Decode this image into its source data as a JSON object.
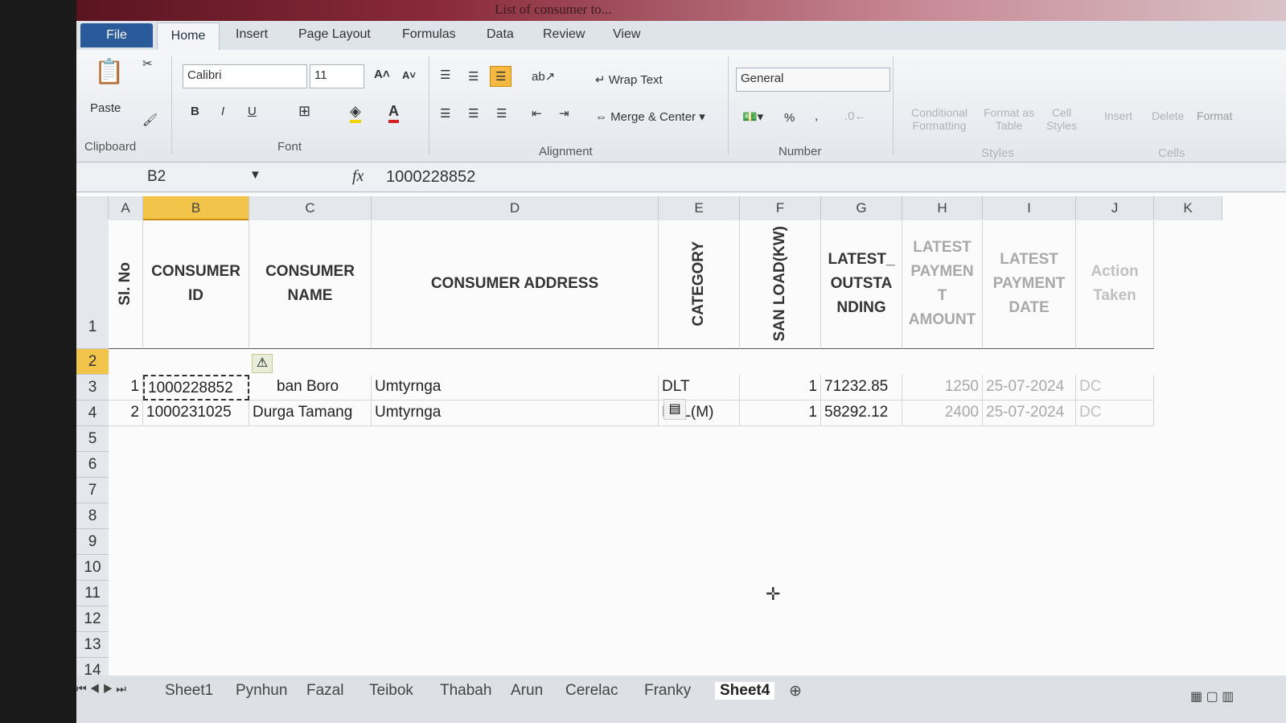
{
  "window": {
    "title": "List of consumer to..."
  },
  "ribbon": {
    "tabs": [
      "File",
      "Home",
      "Insert",
      "Page Layout",
      "Formulas",
      "Data",
      "Review",
      "View"
    ],
    "paste": "Paste",
    "font_name": "Calibri",
    "font_size": "11",
    "bold": "B",
    "italic": "I",
    "underline": "U",
    "wrap_text": "Wrap Text",
    "merge_center": "Merge & Center",
    "number_format": "General",
    "percent": "%",
    "comma": ",",
    "conditional_formatting": "Conditional Formatting",
    "format_as_table": "Format as Table",
    "cell_styles": "Cell Styles",
    "insert": "Insert",
    "delete": "Delete",
    "format": "Format",
    "groups": {
      "clipboard": "Clipboard",
      "font": "Font",
      "alignment": "Alignment",
      "number": "Number",
      "styles": "Styles",
      "cells": "Cells"
    }
  },
  "formula_bar": {
    "name_box": "B2",
    "fx": "fx",
    "value": "1000228852"
  },
  "sheet": {
    "columns": [
      "A",
      "B",
      "C",
      "D",
      "E",
      "F",
      "G",
      "H",
      "I",
      "J",
      "K"
    ],
    "selected_column": "B",
    "selected_row": "2",
    "rows": [
      "1",
      "2",
      "3",
      "4",
      "5",
      "6",
      "7",
      "8",
      "9",
      "10",
      "11",
      "12",
      "13",
      "14"
    ],
    "headers": {
      "sl": "Sl. No",
      "id": "CONSUMER ID",
      "name": "CONSUMER NAME",
      "address": "CONSUMER ADDRESS",
      "category": "CATEGORY",
      "load": "SAN LOAD(KW)",
      "outstanding": "LATEST_ OUTSTA NDING",
      "pay_amount": "LATEST PAYMEN T AMOUNT",
      "pay_date": "LATEST PAYMENT DATE",
      "action": "Action Taken"
    },
    "data": [
      {
        "sl": "1",
        "id": "1000228852",
        "name": "ban Boro",
        "address": "Umtyrnga",
        "category": "DLT",
        "load": "1",
        "outstanding": "71232.85",
        "pay_amount": "1250",
        "pay_date": "25-07-2024",
        "action": "DC"
      },
      {
        "sl": "2",
        "id": "1000231025",
        "name": "Durga Tamang",
        "address": "Umtyrnga",
        "category": "BPL(M)",
        "load": "1",
        "outstanding": "58292.12",
        "pay_amount": "2400",
        "pay_date": "25-07-2024",
        "action": "DC"
      }
    ]
  },
  "sheet_tabs": [
    "Sheet1",
    "Pynhun",
    "Fazal",
    "Teibok",
    "Thabah",
    "Arun",
    "Cerelac",
    "Franky",
    "Sheet4"
  ],
  "active_sheet": "Sheet4"
}
